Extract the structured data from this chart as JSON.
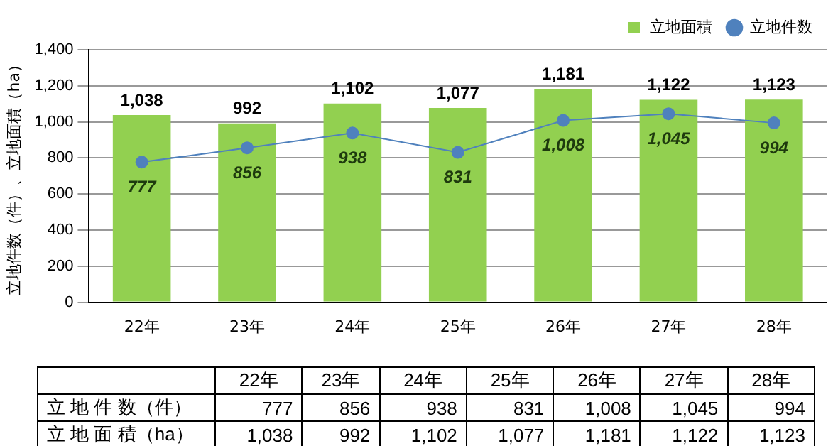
{
  "chart_data": {
    "type": "bar",
    "ylabel": "立地件数（件）、立地面積（ha）",
    "categories": [
      "22年",
      "23年",
      "24年",
      "25年",
      "26年",
      "27年",
      "28年"
    ],
    "series": [
      {
        "name": "立地面積",
        "color": "#92d050",
        "values": [
          1038,
          992,
          1102,
          1077,
          1181,
          1122,
          1123
        ],
        "value_labels": [
          "1,038",
          "992",
          "1,102",
          "1,077",
          "1,181",
          "1,122",
          "1,123"
        ]
      },
      {
        "name": "立地件数",
        "type": "line",
        "color": "#4f81bd",
        "marker": "circle",
        "values": [
          777,
          856,
          938,
          831,
          1008,
          1045,
          994
        ],
        "value_labels": [
          "777",
          "856",
          "938",
          "831",
          "1,008",
          "1,045",
          "994"
        ]
      }
    ],
    "ylim": [
      0,
      1400
    ],
    "yticks": [
      0,
      200,
      400,
      600,
      800,
      {
        "value": 1000,
        "label": "1,000"
      },
      {
        "value": 1200,
        "label": "1,200"
      },
      {
        "value": 1400,
        "label": "1,400"
      }
    ],
    "grid": "y",
    "legend": "top right",
    "annotations": [
      "立 地 件 数（件）",
      "立 地 面 積（ha）"
    ]
  }
}
